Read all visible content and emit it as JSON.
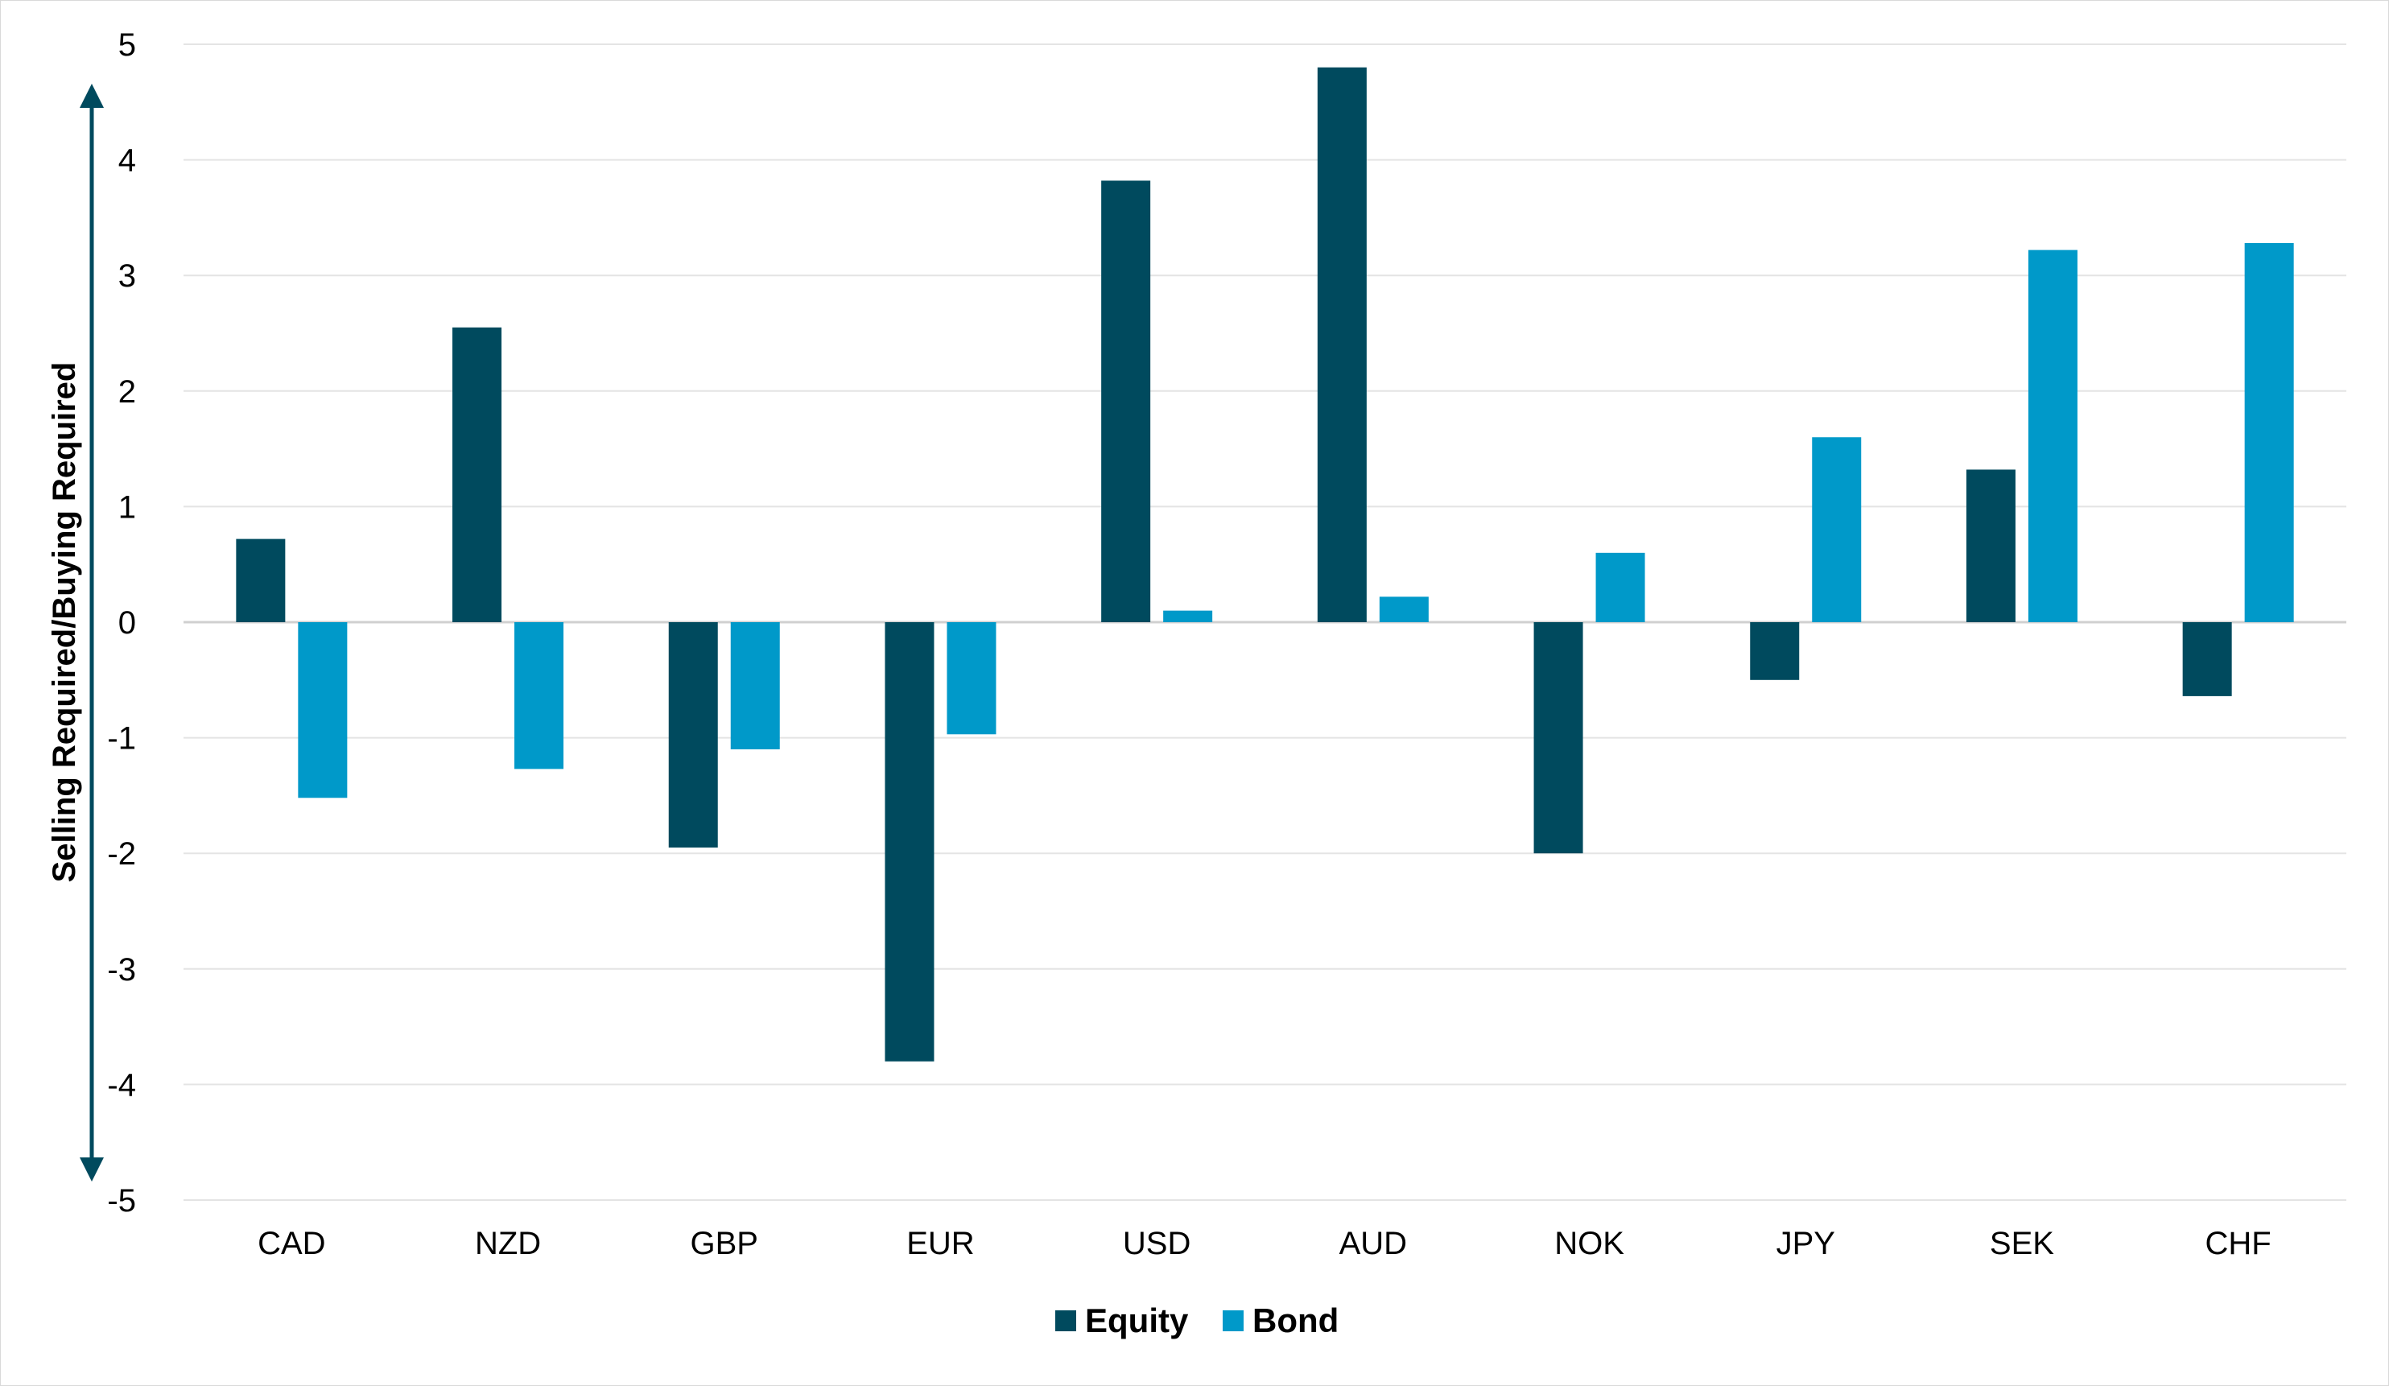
{
  "chart_data": {
    "type": "bar",
    "title": "",
    "xlabel": "",
    "ylabel": "Selling Required/Buying Required",
    "ylim": [
      -5,
      5
    ],
    "yticks": [
      5,
      4,
      3,
      2,
      1,
      0,
      -1,
      -2,
      -3,
      -4,
      -5
    ],
    "grid": true,
    "legend_position": "bottom",
    "categories": [
      "CAD",
      "NZD",
      "GBP",
      "EUR",
      "USD",
      "AUD",
      "NOK",
      "JPY",
      "SEK",
      "CHF"
    ],
    "series": [
      {
        "name": "Equity",
        "color": "#004a5e",
        "values": [
          0.72,
          2.55,
          -1.95,
          -3.8,
          3.82,
          4.8,
          -2.0,
          -0.5,
          1.32,
          -0.64
        ]
      },
      {
        "name": "Bond",
        "color": "#0099c9",
        "values": [
          -1.52,
          -1.27,
          -1.1,
          -0.97,
          0.1,
          0.22,
          0.6,
          1.6,
          3.22,
          3.28
        ]
      }
    ]
  }
}
